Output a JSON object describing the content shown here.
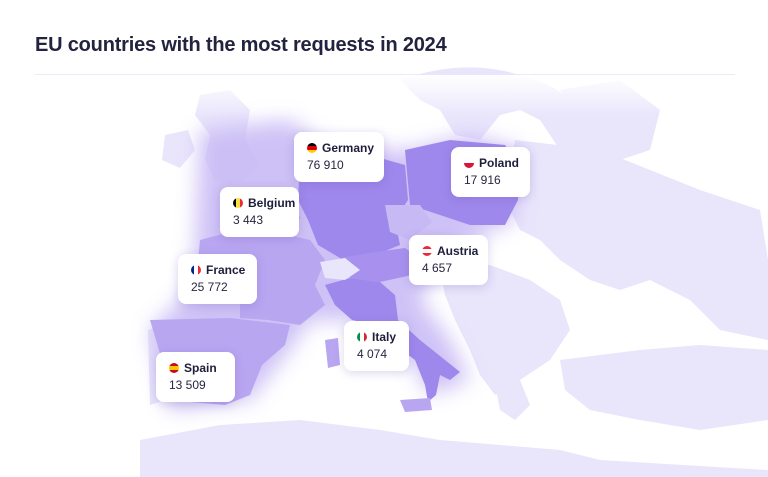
{
  "title": "EU countries with the most requests in 2024",
  "colors": {
    "background_land": "#e9e5fb",
    "highlight_land": "#b7a5f0",
    "highlight_strong": "#9b85ec",
    "title": "#23233f"
  },
  "countries": [
    {
      "name": "Germany",
      "value": "76 910",
      "flag_colors": [
        "#000000",
        "#dd0000",
        "#ffce00"
      ],
      "flag_dir": "h"
    },
    {
      "name": "Poland",
      "value": "17 916",
      "flag_colors": [
        "#ffffff",
        "#dc143c"
      ],
      "flag_dir": "h"
    },
    {
      "name": "Belgium",
      "value": "3 443",
      "flag_colors": [
        "#000000",
        "#fae042",
        "#ed2939"
      ],
      "flag_dir": "v"
    },
    {
      "name": "Austria",
      "value": "4 657",
      "flag_colors": [
        "#ed2939",
        "#ffffff",
        "#ed2939"
      ],
      "flag_dir": "h"
    },
    {
      "name": "France",
      "value": "25 772",
      "flag_colors": [
        "#002395",
        "#ffffff",
        "#ed2939"
      ],
      "flag_dir": "v"
    },
    {
      "name": "Italy",
      "value": "4 074",
      "flag_colors": [
        "#009246",
        "#ffffff",
        "#ce2b37"
      ],
      "flag_dir": "v"
    },
    {
      "name": "Spain",
      "value": "13 509",
      "flag_colors": [
        "#c60b1e",
        "#ffc400",
        "#c60b1e"
      ],
      "flag_dir": "h"
    }
  ]
}
